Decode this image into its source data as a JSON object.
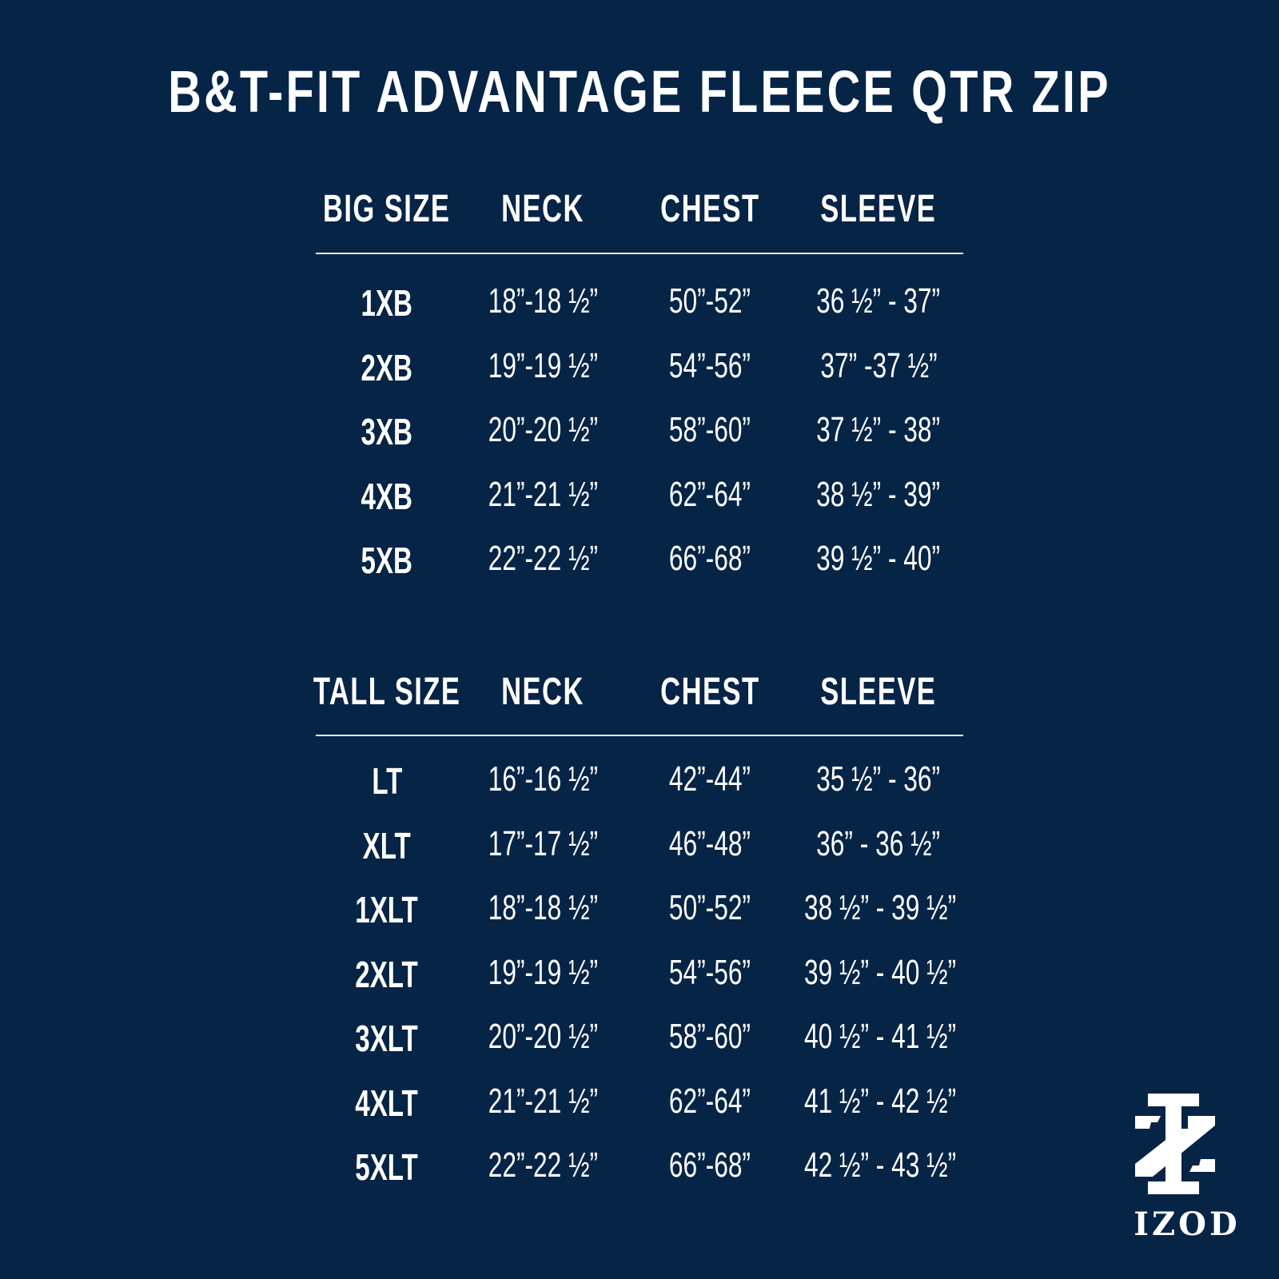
{
  "title": "B&T-FIT ADVANTAGE FLEECE QTR ZIP",
  "colors": {
    "background": "#062446",
    "text": "#ffffff"
  },
  "big_table": {
    "headers": [
      "BIG SIZE",
      "NECK",
      "CHEST",
      "SLEEVE"
    ],
    "rows": [
      [
        "1XB",
        "18”-18 ½”",
        "50”-52”",
        "36 ½” - 37”"
      ],
      [
        "2XB",
        "19”-19 ½”",
        "54”-56”",
        "37” -37 ½”"
      ],
      [
        "3XB",
        "20”-20 ½”",
        "58”-60”",
        "37 ½” - 38”"
      ],
      [
        "4XB",
        "21”-21 ½”",
        "62”-64”",
        "38 ½” - 39”"
      ],
      [
        "5XB",
        "22”-22 ½”",
        "66”-68”",
        "39 ½” - 40”"
      ]
    ]
  },
  "tall_table": {
    "headers": [
      "TALL SIZE",
      "NECK",
      "CHEST",
      "SLEEVE"
    ],
    "rows": [
      [
        "LT",
        "16”-16 ½”",
        "42”-44”",
        "35 ½” - 36”"
      ],
      [
        "XLT",
        "17”-17 ½”",
        "46”-48”",
        "36” - 36 ½”"
      ],
      [
        "1XLT",
        "18”-18 ½”",
        "50”-52”",
        "38 ½” - 39 ½”"
      ],
      [
        "2XLT",
        "19”-19 ½”",
        "54”-56”",
        "39 ½” - 40 ½”"
      ],
      [
        "3XLT",
        "20”-20 ½”",
        "58”-60”",
        "40 ½” - 41 ½”"
      ],
      [
        "4XLT",
        "21”-21 ½”",
        "62”-64”",
        "41 ½” - 42 ½”"
      ],
      [
        "5XLT",
        "22”-22 ½”",
        "66”-68”",
        "42 ½” - 43 ½”"
      ]
    ]
  },
  "logo": {
    "text": "IZOD",
    "icon": "izod-monogram-icon"
  }
}
